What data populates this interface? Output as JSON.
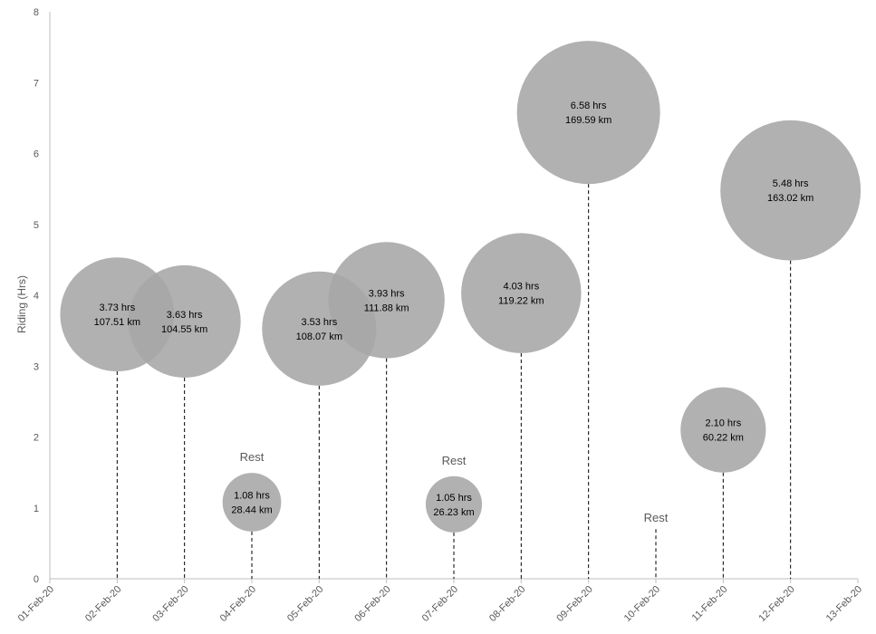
{
  "chart_data": {
    "type": "bubble",
    "ylabel": "Riding (Hrs)",
    "ylim": [
      0,
      8
    ],
    "yticks": [
      "0",
      "1",
      "2",
      "3",
      "4",
      "5",
      "6",
      "7",
      "8"
    ],
    "xticks": [
      "01-Feb-20",
      "02-Feb-20",
      "03-Feb-20",
      "04-Feb-20",
      "05-Feb-20",
      "06-Feb-20",
      "07-Feb-20",
      "08-Feb-20",
      "09-Feb-20",
      "10-Feb-20",
      "11-Feb-20",
      "12-Feb-20",
      "13-Feb-20"
    ],
    "grid": false,
    "points": [
      {
        "date": "02-Feb-20",
        "hours": 3.73,
        "km": 107.51,
        "label_hours": "3.73 hrs",
        "label_km": "107.51 km"
      },
      {
        "date": "03-Feb-20",
        "hours": 3.63,
        "km": 104.55,
        "label_hours": "3.63 hrs",
        "label_km": "104.55 km"
      },
      {
        "date": "04-Feb-20",
        "hours": 1.08,
        "km": 28.44,
        "label_hours": "1.08 hrs",
        "label_km": "28.44 km",
        "note": "Rest"
      },
      {
        "date": "05-Feb-20",
        "hours": 3.53,
        "km": 108.07,
        "label_hours": "3.53 hrs",
        "label_km": "108.07 km"
      },
      {
        "date": "06-Feb-20",
        "hours": 3.93,
        "km": 111.88,
        "label_hours": "3.93 hrs",
        "label_km": "111.88 km"
      },
      {
        "date": "07-Feb-20",
        "hours": 1.05,
        "km": 26.23,
        "label_hours": "1.05 hrs",
        "label_km": "26.23 km",
        "note": "Rest"
      },
      {
        "date": "08-Feb-20",
        "hours": 4.03,
        "km": 119.22,
        "label_hours": "4.03 hrs",
        "label_km": "119.22 km"
      },
      {
        "date": "09-Feb-20",
        "hours": 6.58,
        "km": 169.59,
        "label_hours": "6.58 hrs",
        "label_km": "169.59 km"
      },
      {
        "date": "11-Feb-20",
        "hours": 2.1,
        "km": 60.22,
        "label_hours": "2.10 hrs",
        "label_km": "60.22 km"
      },
      {
        "date": "12-Feb-20",
        "hours": 5.48,
        "km": 163.02,
        "label_hours": "5.48 hrs",
        "label_km": "163.02 km"
      }
    ],
    "rest_days": [
      {
        "date": "10-Feb-20",
        "text": "Rest"
      }
    ],
    "colors": {
      "bubble": "#a6a6a6",
      "axis": "#bfbfbf",
      "dropline": "#000000",
      "tick_text": "#595959"
    }
  }
}
